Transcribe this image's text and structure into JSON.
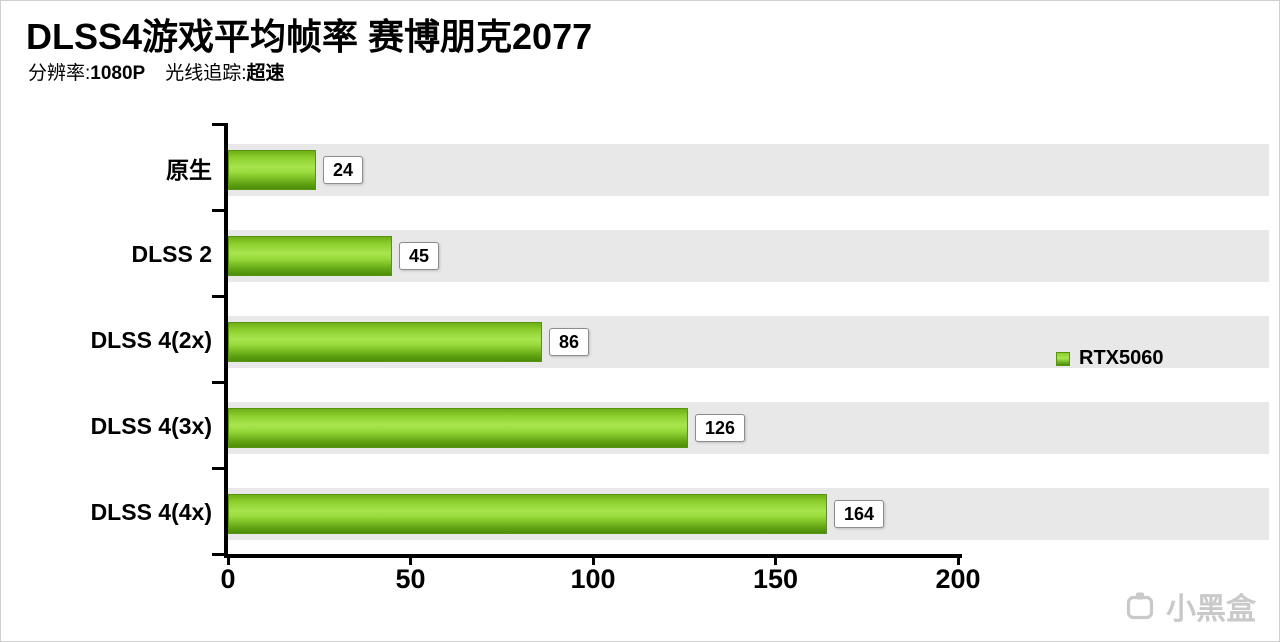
{
  "header": {
    "title": "DLSS4游戏平均帧率 赛博朋克2077",
    "subtitle": {
      "res_label": "分辨率:",
      "res_value": "1080P",
      "rt_label": "光线追踪:",
      "rt_value": "超速"
    }
  },
  "chart_data": {
    "type": "bar",
    "orientation": "horizontal",
    "title": "DLSS4游戏平均帧率 赛博朋克2077",
    "categories": [
      "原生",
      "DLSS 2",
      "DLSS 4(2x)",
      "DLSS 4(3x)",
      "DLSS 4(4x)"
    ],
    "series": [
      {
        "name": "RTX5060",
        "values": [
          24,
          45,
          86,
          126,
          164
        ]
      }
    ],
    "xlim": [
      0,
      200
    ],
    "x_ticks": [
      0,
      50,
      100,
      150,
      200
    ],
    "grid": "row-bands",
    "legend_position": "right",
    "colors": {
      "bar_top": "#8ccf2e",
      "bar_mid": "#a8e44e",
      "bar_bottom": "#4c8d0a",
      "band": "#e8e8e8",
      "axis": "#000000"
    }
  },
  "watermark": {
    "text": "小黑盒"
  }
}
